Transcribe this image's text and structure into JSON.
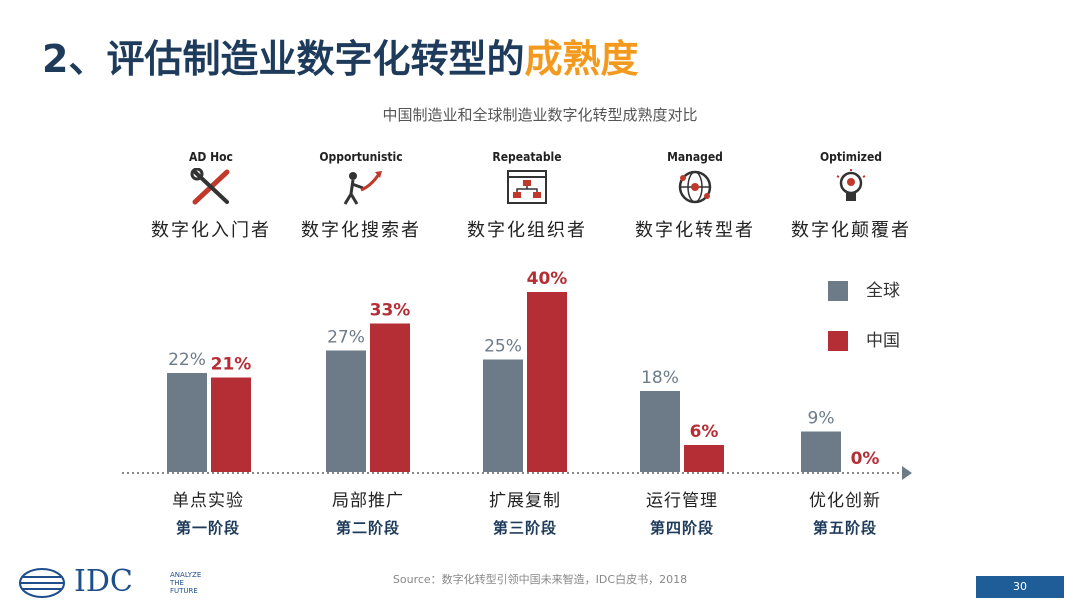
{
  "title": {
    "prefix": "2、评估制造业数字化转型的",
    "highlight": "成熟度"
  },
  "colors": {
    "global": "#6d7b88",
    "china": "#b52e35",
    "title": "#1f3b5c",
    "highlight": "#f39a1e"
  },
  "stages": [
    {
      "en": "AD Hoc",
      "cn": "数字化入门者",
      "icon": "tools-icon"
    },
    {
      "en": "Opportunistic",
      "cn": "数字化搜索者",
      "icon": "climber-icon"
    },
    {
      "en": "Repeatable",
      "cn": "数字化组织者",
      "icon": "org-chart-icon"
    },
    {
      "en": "Managed",
      "cn": "数字化转型者",
      "icon": "network-globe-icon"
    },
    {
      "en": "Optimized",
      "cn": "数字化颠覆者",
      "icon": "lightbulb-icon"
    }
  ],
  "chart_data": {
    "type": "bar",
    "title": "中国制造业和全球制造业数字化转型成熟度对比",
    "categories": [
      "单点实验",
      "局部推广",
      "扩展复制",
      "运行管理",
      "优化创新"
    ],
    "category_stages": [
      "第一阶段",
      "第二阶段",
      "第三阶段",
      "第四阶段",
      "第五阶段"
    ],
    "series": [
      {
        "name": "全球",
        "values": [
          22,
          27,
          25,
          18,
          9
        ]
      },
      {
        "name": "中国",
        "values": [
          21,
          33,
          40,
          6,
          0
        ]
      }
    ],
    "value_labels": {
      "global": [
        "22%",
        "27%",
        "25%",
        "18%",
        "9%"
      ],
      "china": [
        "21%",
        "33%",
        "40%",
        "6%",
        "0%"
      ]
    },
    "ylim": [
      0,
      40
    ],
    "legend": "right"
  },
  "source": "Source：数字化转型引领中国未来智造，IDC白皮书，2018",
  "logo": {
    "text": "IDC",
    "tagline": "ANALYZE THE FUTURE"
  },
  "page_number": "30"
}
